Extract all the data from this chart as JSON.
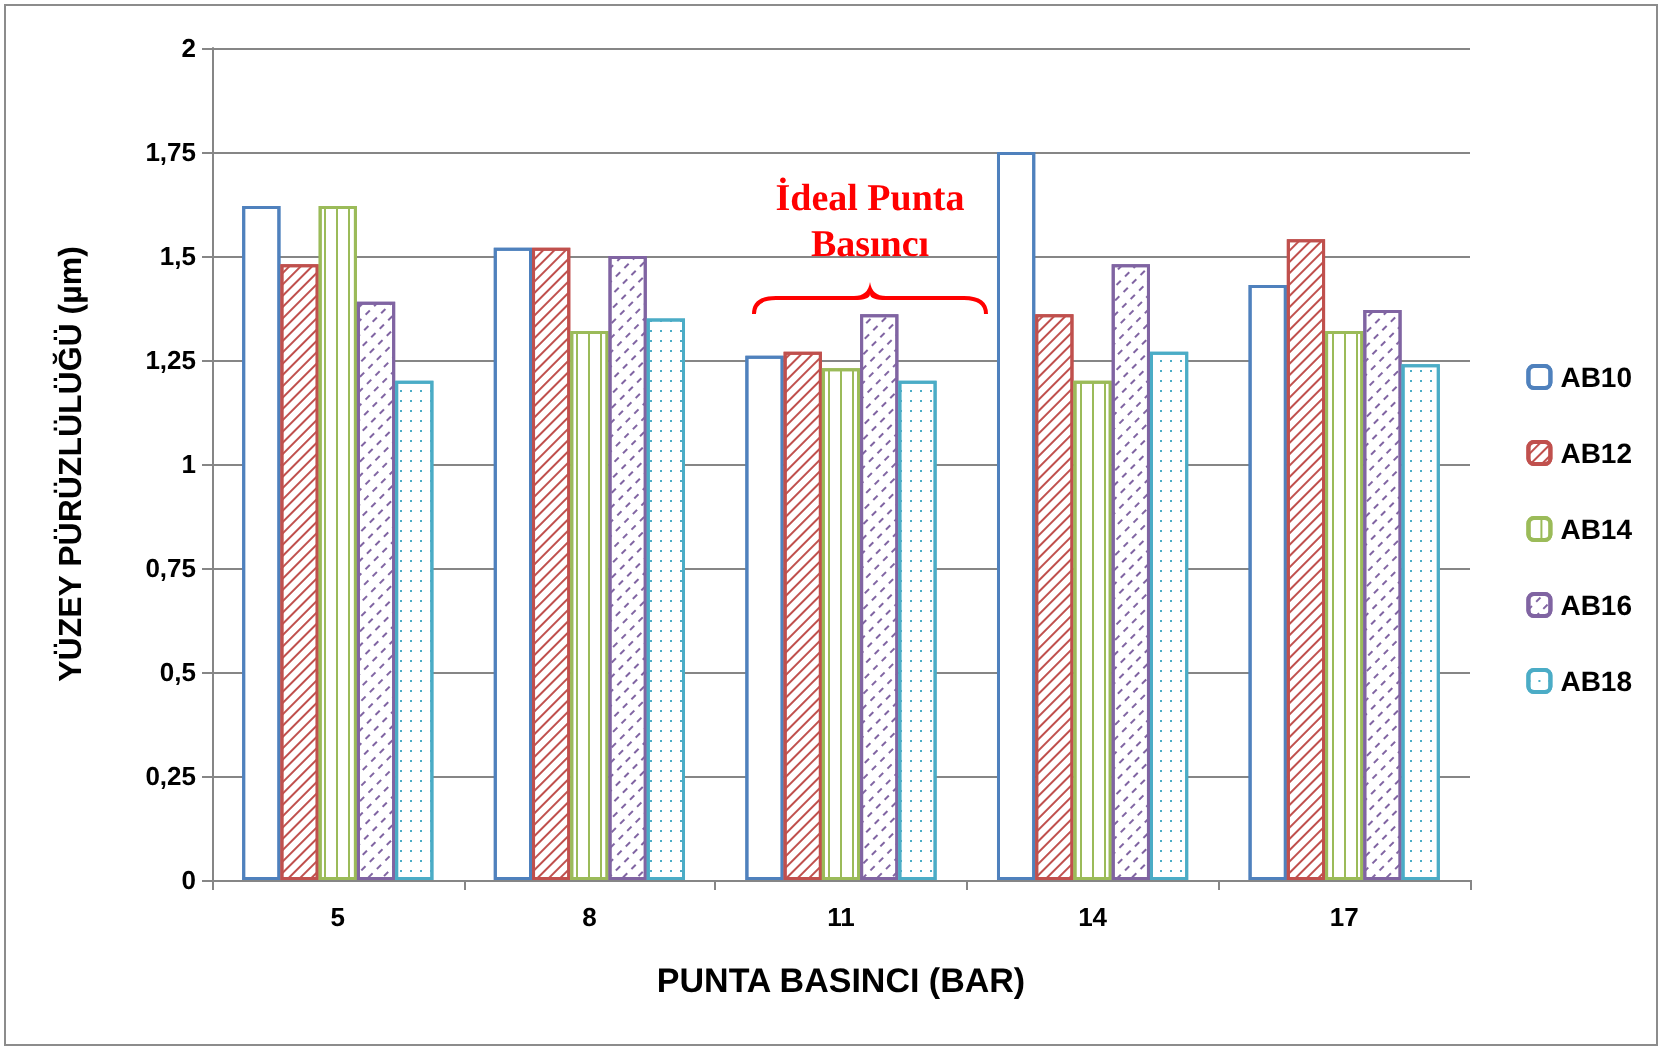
{
  "chart_data": {
    "type": "bar",
    "xlabel": "PUNTA BASINCI (BAR)",
    "ylabel": "YÜZEY PÜRÜZLÜLÜĞÜ (µm)",
    "categories": [
      "5",
      "8",
      "11",
      "14",
      "17"
    ],
    "series": [
      {
        "name": "AB10",
        "color": "#4f81bd",
        "values": [
          1.62,
          1.52,
          1.26,
          1.75,
          1.43
        ]
      },
      {
        "name": "AB12",
        "color": "#c0504d",
        "values": [
          1.48,
          1.52,
          1.27,
          1.36,
          1.54
        ]
      },
      {
        "name": "AB14",
        "color": "#9bbb59",
        "values": [
          1.62,
          1.32,
          1.23,
          1.2,
          1.32
        ]
      },
      {
        "name": "AB16",
        "color": "#8064a2",
        "values": [
          1.39,
          1.5,
          1.36,
          1.48,
          1.37
        ]
      },
      {
        "name": "AB18",
        "color": "#4bacc6",
        "values": [
          1.2,
          1.35,
          1.2,
          1.27,
          1.24
        ]
      }
    ],
    "ylim": [
      0,
      2
    ],
    "yticks": [
      0,
      {
        "value": 0.25,
        "label": "0,25"
      },
      {
        "value": 0.5,
        "label": "0,5"
      },
      {
        "value": 0.75,
        "label": "0,75"
      },
      1,
      {
        "value": 1.25,
        "label": "1,25"
      },
      {
        "value": 1.5,
        "label": "1,5"
      },
      {
        "value": 1.75,
        "label": "1,75"
      },
      2
    ],
    "grid": "y",
    "legend": "right",
    "annotations": [
      "İdeal Punta Basıncı"
    ]
  }
}
